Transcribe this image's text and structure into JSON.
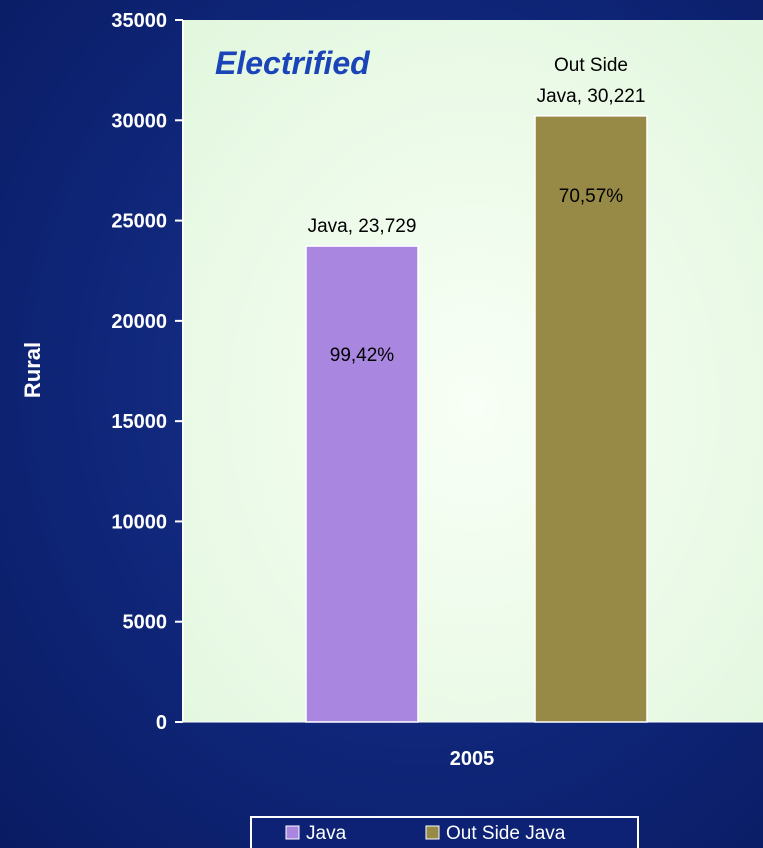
{
  "chart_data": {
    "type": "bar",
    "title": "Electrified",
    "ylabel": "Rural",
    "categories": [
      "2005"
    ],
    "ylim": [
      0,
      35000
    ],
    "yticks": [
      0,
      5000,
      10000,
      15000,
      20000,
      25000,
      30000,
      35000
    ],
    "series": [
      {
        "name": "Java",
        "values": [
          23729
        ],
        "color": "#a987e0",
        "label_lines": [
          "Java, 23,729"
        ],
        "inner_label": "99,42%"
      },
      {
        "name": "Out Side Java",
        "values": [
          30221
        ],
        "color": "#978946",
        "label_lines": [
          "Out Side",
          "Java, 30,221"
        ],
        "inner_label": "70,57%"
      }
    ],
    "legend_position": "bottom",
    "plot_background": "#e9fbe6"
  }
}
